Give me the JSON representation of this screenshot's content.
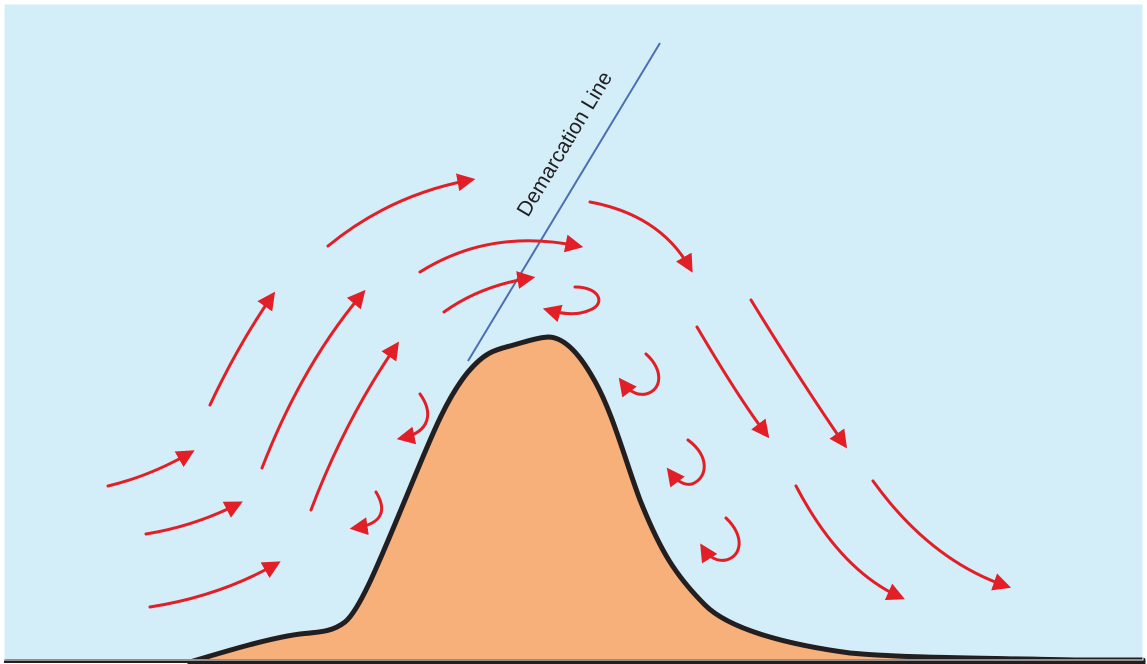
{
  "demarcation_label": "Demarcation Line",
  "colors": {
    "sky": "#d3eef8",
    "mountain_fill": "#f8b07b",
    "mountain_outline": "#231f20",
    "arrow": "#e21f26",
    "demarcation_line": "#4a6fb5"
  },
  "elements": {
    "mountain": "mountain",
    "demarcation_line": "demarcation-line",
    "arrows": [
      "windward-flow-arrow",
      "windward-flow-arrow",
      "windward-flow-arrow",
      "windward-rising-arrow",
      "windward-rising-arrow",
      "windward-rising-arrow",
      "upper-flow-arrow",
      "upper-flow-arrow",
      "upper-flow-arrow",
      "upper-flow-arrow",
      "leeward-descending-arrow",
      "leeward-descending-arrow",
      "leeward-descending-arrow",
      "leeward-descending-arrow",
      "leeward-descending-arrow",
      "leeward-descending-arrow",
      "windward-eddy-arrow",
      "windward-eddy-arrow",
      "summit-eddy-arrow",
      "leeward-eddy-arrow",
      "leeward-eddy-arrow",
      "leeward-eddy-arrow"
    ]
  }
}
